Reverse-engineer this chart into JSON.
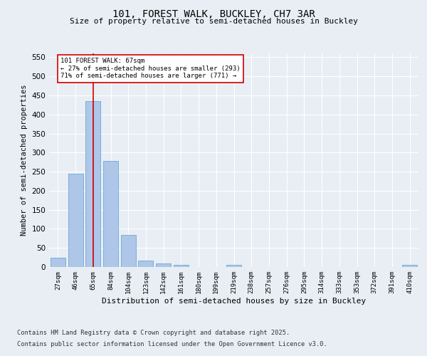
{
  "title_line1": "101, FOREST WALK, BUCKLEY, CH7 3AR",
  "title_line2": "Size of property relative to semi-detached houses in Buckley",
  "xlabel": "Distribution of semi-detached houses by size in Buckley",
  "ylabel": "Number of semi-detached properties",
  "categories": [
    "27sqm",
    "46sqm",
    "65sqm",
    "84sqm",
    "104sqm",
    "123sqm",
    "142sqm",
    "161sqm",
    "180sqm",
    "199sqm",
    "219sqm",
    "238sqm",
    "257sqm",
    "276sqm",
    "295sqm",
    "314sqm",
    "333sqm",
    "353sqm",
    "372sqm",
    "391sqm",
    "410sqm"
  ],
  "values": [
    24,
    244,
    435,
    279,
    84,
    16,
    10,
    5,
    0,
    0,
    5,
    0,
    0,
    0,
    0,
    0,
    0,
    0,
    0,
    0,
    5
  ],
  "bar_color": "#aec6e8",
  "bar_edge_color": "#5a9fd4",
  "vline_x": 2,
  "vline_color": "#cc0000",
  "annotation_text": "101 FOREST WALK: 67sqm\n← 27% of semi-detached houses are smaller (293)\n71% of semi-detached houses are larger (771) →",
  "annotation_box_color": "#ffffff",
  "annotation_box_edge": "#cc0000",
  "ylim": [
    0,
    560
  ],
  "yticks": [
    0,
    50,
    100,
    150,
    200,
    250,
    300,
    350,
    400,
    450,
    500,
    550
  ],
  "footnote1": "Contains HM Land Registry data © Crown copyright and database right 2025.",
  "footnote2": "Contains public sector information licensed under the Open Government Licence v3.0.",
  "bg_color": "#e8eef4",
  "plot_bg_color": "#e8eef4",
  "grid_color": "#ffffff"
}
